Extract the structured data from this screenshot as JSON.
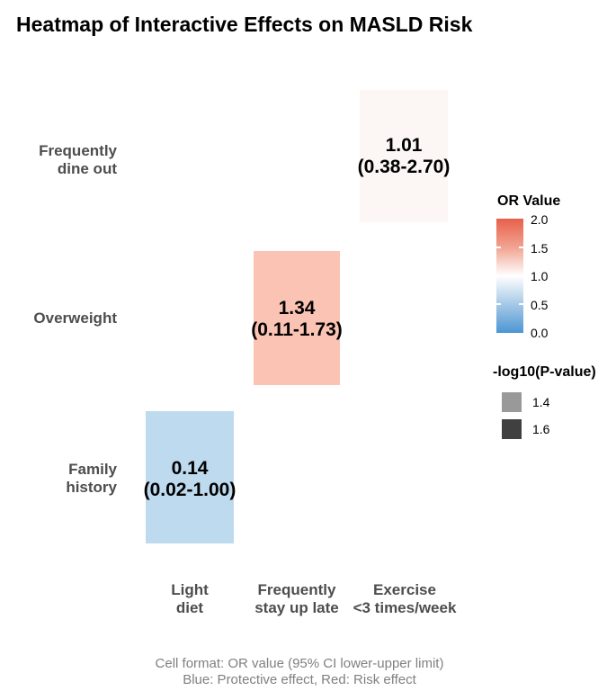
{
  "chart_data": {
    "type": "heatmap",
    "title": "Heatmap of Interactive Effects on MASLD Risk",
    "x_categories": [
      "Light diet",
      "Frequently stay up late",
      "Exercise <3 times/week"
    ],
    "y_categories": [
      "Frequently dine out",
      "Overweight",
      "Family history"
    ],
    "cells": [
      {
        "y": "Frequently dine out",
        "x": "Exercise <3 times/week",
        "or": 1.01,
        "ci_low": 0.38,
        "ci_high": 2.7,
        "or_label": "1.01",
        "ci_label": "(0.38-2.70)",
        "fill": "#fcf6f4"
      },
      {
        "y": "Overweight",
        "x": "Frequently stay up late",
        "or": 1.34,
        "ci_low": 0.11,
        "ci_high": 1.73,
        "or_label": "1.34",
        "ci_label": "(0.11-1.73)",
        "fill": "#fbc3b3"
      },
      {
        "y": "Family history",
        "x": "Light diet",
        "or": 0.14,
        "ci_low": 0.02,
        "ci_high": 1.0,
        "or_label": "0.14",
        "ci_label": "(0.02-1.00)",
        "fill": "#bddaef"
      }
    ],
    "axis": {
      "y_labels": [
        {
          "line1": "Frequently",
          "line2": "dine out"
        },
        {
          "line1": "Overweight",
          "line2": ""
        },
        {
          "line1": "Family",
          "line2": "history"
        }
      ],
      "x_labels": [
        {
          "line1": "Light",
          "line2": "diet"
        },
        {
          "line1": "Frequently",
          "line2": "stay up late"
        },
        {
          "line1": "Exercise",
          "line2": "<3 times/week"
        }
      ]
    },
    "legend_or": {
      "title": "OR Value",
      "ticks": [
        "2.0",
        "1.5",
        "1.0",
        "0.5",
        "0.0"
      ],
      "range": [
        0.0,
        2.0
      ],
      "color_high": "#e7604a",
      "color_mid": "#ffffff",
      "color_low": "#4c96d3",
      "position": "right"
    },
    "legend_p": {
      "title": "-log10(P-value)",
      "entries": [
        {
          "label": "1.4",
          "color": "#999999"
        },
        {
          "label": "1.6",
          "color": "#404040"
        }
      ]
    },
    "caption": [
      "Cell format: OR value (95% CI lower-upper limit)",
      "Blue: Protective effect, Red: Risk effect"
    ],
    "grid": false,
    "background": "#ffffff"
  }
}
